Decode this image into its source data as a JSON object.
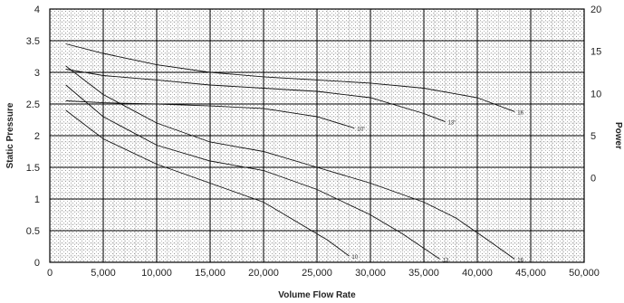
{
  "chart_data": {
    "type": "line",
    "title": "",
    "xlabel": "Volume Flow Rate",
    "ylabel": "Static Pressure",
    "y2label": "Power",
    "xlim": [
      0,
      50000
    ],
    "ylim": [
      0,
      4
    ],
    "y2lim": [
      -10,
      20
    ],
    "x_ticks": [
      "0",
      "5,000",
      "10,000",
      "15,000",
      "20,000",
      "25,000",
      "30,000",
      "35,000",
      "40,000",
      "45,000",
      "50,000"
    ],
    "y_ticks": [
      "0",
      "0.5",
      "1",
      "1.5",
      "2",
      "2.5",
      "3",
      "3.5",
      "4"
    ],
    "y2_ticks": [
      "20",
      "15",
      "10",
      "5",
      "0"
    ],
    "grid": true,
    "pressure_series": [
      {
        "label": "10",
        "x": [
          1500,
          5000,
          10000,
          15000,
          20000,
          23000,
          26000,
          28000
        ],
        "y": [
          2.4,
          1.95,
          1.55,
          1.25,
          0.95,
          0.65,
          0.35,
          0.1
        ]
      },
      {
        "label": "13",
        "x": [
          1500,
          5000,
          10000,
          15000,
          20000,
          25000,
          30000,
          33000,
          36500
        ],
        "y": [
          2.8,
          2.3,
          1.85,
          1.6,
          1.45,
          1.15,
          0.75,
          0.45,
          0.05
        ]
      },
      {
        "label": "16",
        "x": [
          1500,
          5000,
          10000,
          15000,
          20000,
          25000,
          30000,
          35000,
          38000,
          41000,
          43500
        ],
        "y": [
          3.1,
          2.65,
          2.2,
          1.9,
          1.75,
          1.5,
          1.25,
          0.95,
          0.7,
          0.35,
          0.05
        ]
      }
    ],
    "power_series": [
      {
        "label": "10\"",
        "x": [
          1500,
          5000,
          10000,
          15000,
          20000,
          25000,
          28500
        ],
        "y": [
          2.55,
          2.52,
          2.5,
          2.47,
          2.43,
          2.3,
          2.12
        ]
      },
      {
        "label": "13\"",
        "x": [
          1500,
          5000,
          10000,
          15000,
          20000,
          25000,
          30000,
          35000,
          37000
        ],
        "y": [
          3.05,
          2.95,
          2.88,
          2.8,
          2.75,
          2.7,
          2.6,
          2.35,
          2.22
        ]
      },
      {
        "label": "16",
        "x": [
          1500,
          5000,
          10000,
          15000,
          20000,
          25000,
          30000,
          35000,
          40000,
          43500
        ],
        "y": [
          3.45,
          3.3,
          3.12,
          3.0,
          2.93,
          2.88,
          2.83,
          2.75,
          2.6,
          2.38
        ]
      }
    ]
  }
}
